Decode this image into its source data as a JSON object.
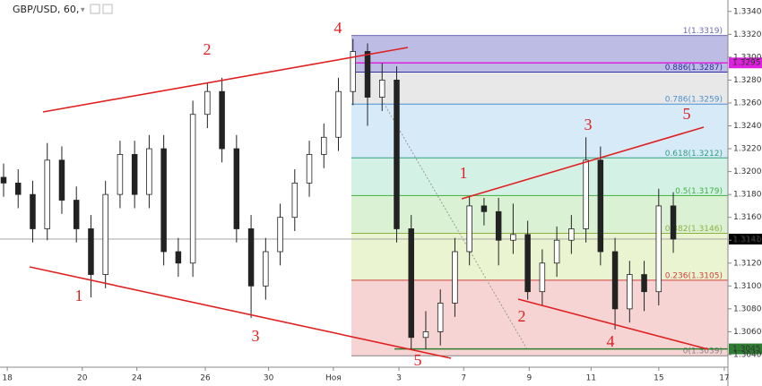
{
  "chart_data": {
    "type": "candlestick",
    "title": "GBP/USD, 60,",
    "x": [
      0,
      2,
      4,
      6,
      8,
      10,
      12,
      14,
      16,
      18,
      20,
      22,
      24,
      26,
      28,
      30,
      32,
      34,
      36,
      38,
      40,
      42,
      44,
      46,
      48,
      50,
      52,
      54,
      56,
      58,
      60,
      62,
      64,
      66,
      68,
      70,
      72,
      74,
      76,
      78,
      80,
      82,
      84,
      86,
      88,
      90,
      92
    ],
    "open": [
      1.3195,
      1.319,
      1.318,
      1.315,
      1.321,
      1.3175,
      1.315,
      1.311,
      1.318,
      1.3215,
      1.318,
      1.322,
      1.313,
      1.312,
      1.325,
      1.327,
      1.322,
      1.315,
      1.31,
      1.313,
      1.316,
      1.319,
      1.3215,
      1.323,
      1.327,
      1.3305,
      1.3265,
      1.328,
      1.315,
      1.3055,
      1.306,
      1.3085,
      1.313,
      1.317,
      1.3165,
      1.314,
      1.3145,
      1.3095,
      1.312,
      1.314,
      1.315,
      1.321,
      1.313,
      1.308,
      1.311,
      1.3095,
      1.317
    ],
    "high": [
      1.3207,
      1.3202,
      1.3192,
      1.3225,
      1.3222,
      1.3187,
      1.3162,
      1.3192,
      1.3227,
      1.3227,
      1.3232,
      1.3232,
      1.3142,
      1.3262,
      1.3278,
      1.3282,
      1.3232,
      1.3162,
      1.3142,
      1.3172,
      1.3202,
      1.3227,
      1.3242,
      1.3282,
      1.3316,
      1.3312,
      1.3295,
      1.3292,
      1.3162,
      1.3078,
      1.3097,
      1.3142,
      1.3178,
      1.3177,
      1.3177,
      1.3172,
      1.3157,
      1.3132,
      1.3152,
      1.3162,
      1.323,
      1.3222,
      1.3142,
      1.3122,
      1.3122,
      1.3185,
      1.3182
    ],
    "low": [
      1.3178,
      1.3168,
      1.3138,
      1.314,
      1.3163,
      1.3138,
      1.309,
      1.3098,
      1.3168,
      1.3168,
      1.3168,
      1.3118,
      1.3108,
      1.3108,
      1.3238,
      1.3208,
      1.3138,
      1.3072,
      1.3088,
      1.3118,
      1.3148,
      1.3178,
      1.3203,
      1.3218,
      1.3258,
      1.324,
      1.3253,
      1.3138,
      1.3045,
      1.3045,
      1.3048,
      1.3073,
      1.3118,
      1.3153,
      1.3118,
      1.3128,
      1.3088,
      1.3083,
      1.3108,
      1.3128,
      1.3138,
      1.3118,
      1.3062,
      1.3068,
      1.3078,
      1.3083,
      1.3129
    ],
    "close": [
      1.319,
      1.318,
      1.315,
      1.321,
      1.3175,
      1.315,
      1.311,
      1.318,
      1.3215,
      1.318,
      1.322,
      1.313,
      1.312,
      1.325,
      1.327,
      1.322,
      1.315,
      1.31,
      1.313,
      1.316,
      1.319,
      1.3215,
      1.323,
      1.327,
      1.3305,
      1.3265,
      1.328,
      1.315,
      1.3055,
      1.306,
      1.3085,
      1.313,
      1.317,
      1.3165,
      1.314,
      1.3145,
      1.3095,
      1.312,
      1.314,
      1.315,
      1.321,
      1.313,
      1.308,
      1.311,
      1.3095,
      1.317,
      1.3141
    ],
    "xlim": [
      0,
      100
    ],
    "ylim": [
      1.3029,
      1.335
    ],
    "xticks": [
      {
        "value": 1,
        "label": "18"
      },
      {
        "value": 11.3,
        "label": "20"
      },
      {
        "value": 18.8,
        "label": "24"
      },
      {
        "value": 28.2,
        "label": "26"
      },
      {
        "value": 36.9,
        "label": "30"
      },
      {
        "value": 45.8,
        "label": "Ноя"
      },
      {
        "value": 54.8,
        "label": "3"
      },
      {
        "value": 63.7,
        "label": "7"
      },
      {
        "value": 72.7,
        "label": "9"
      },
      {
        "value": 81.2,
        "label": "11"
      },
      {
        "value": 90.5,
        "label": "15"
      },
      {
        "value": 99.5,
        "label": "17"
      }
    ],
    "yticks": [
      {
        "value": 1.304,
        "label": "1.3040"
      },
      {
        "value": 1.306,
        "label": "1.3060"
      },
      {
        "value": 1.308,
        "label": "1.3080"
      },
      {
        "value": 1.31,
        "label": "1.3100"
      },
      {
        "value": 1.312,
        "label": "1.3120"
      },
      {
        "value": 1.314,
        "label": "1.3140"
      },
      {
        "value": 1.316,
        "label": "1.3160"
      },
      {
        "value": 1.318,
        "label": "1.3180"
      },
      {
        "value": 1.32,
        "label": "1.3200"
      },
      {
        "value": 1.322,
        "label": "1.3220"
      },
      {
        "value": 1.324,
        "label": "1.3240"
      },
      {
        "value": 1.326,
        "label": "1.3260"
      },
      {
        "value": 1.328,
        "label": "1.3280"
      },
      {
        "value": 1.33,
        "label": "1.3300"
      },
      {
        "value": 1.332,
        "label": "1.3320"
      },
      {
        "value": 1.334,
        "label": "1.3340"
      }
    ],
    "fib": {
      "levels": [
        {
          "label": "1(1.3319)",
          "value": 1.3319,
          "color": "#6a6ab8"
        },
        {
          "label": "0.886(1.3287)",
          "value": 1.3287,
          "color": "#3030a0"
        },
        {
          "label": "0.786(1.3259)",
          "value": 1.3259,
          "color": "#4a90d0"
        },
        {
          "label": "0.618(1.3212)",
          "value": 1.3212,
          "color": "#30a080"
        },
        {
          "label": "0.5(1.3179)",
          "value": 1.3179,
          "color": "#40b040"
        },
        {
          "label": "0.382(1.3146)",
          "value": 1.3146,
          "color": "#90b040"
        },
        {
          "label": "0.236(1.3105)",
          "value": 1.3105,
          "color": "#d04040"
        },
        {
          "label": "0(1.3039)",
          "value": 1.3039,
          "color": "#808080"
        }
      ],
      "colors": [
        "#b0b0e0",
        "#e4e4e4",
        "#cfe6f6",
        "#cdeee2",
        "#d4efcc",
        "#e8f2c8",
        "#f6cccc"
      ]
    },
    "price_lines": [
      {
        "value": 1.3295,
        "color": "#e020e0"
      },
      {
        "value": 1.3045,
        "color": "#2e7d32"
      },
      {
        "value": 1.3141,
        "color": "#000000"
      }
    ],
    "waves": [
      "1",
      "2",
      "3",
      "4",
      "5",
      "1",
      "2",
      "3",
      "4",
      "5"
    ]
  }
}
